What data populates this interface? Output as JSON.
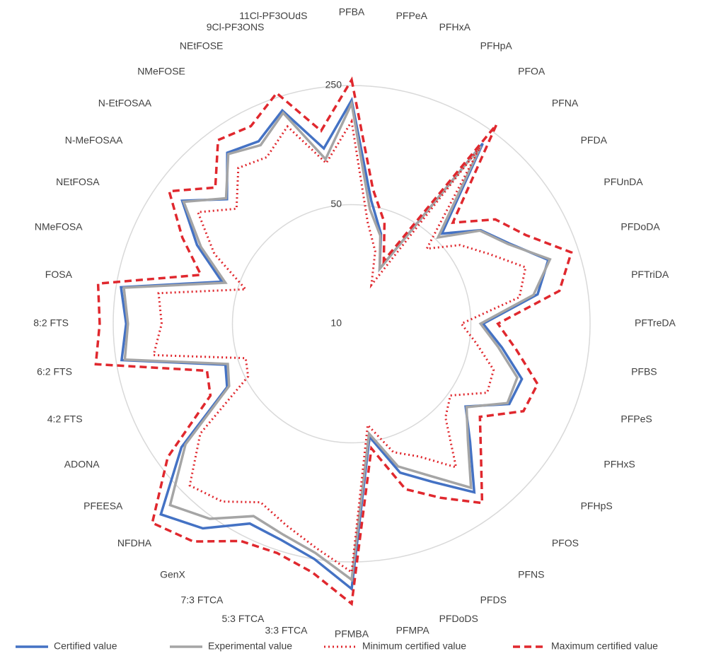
{
  "chart_data": {
    "type": "radar",
    "log_scale": true,
    "categories": [
      "PFBA",
      "PFPeA",
      "PFHxA",
      "PFHpA",
      "PFOA",
      "PFNA",
      "PFDA",
      "PFUnDA",
      "PFDoDA",
      "PFTriDA",
      "PFTreDA",
      "PFBS",
      "PFPeS",
      "PFHxS",
      "PFHpS",
      "PFOS",
      "PFNS",
      "PFDS",
      "PFDoDS",
      "PFMPA",
      "PFMBA",
      "3:3 FTCA",
      "5:3 FTCA",
      "7:3 FTCA",
      "GenX",
      "NFDHA",
      "PFEESA",
      "ADONA",
      "4:2 FTS",
      "6:2 FTS",
      "8:2 FTS",
      "FOSA",
      "NMeFOSA",
      "NEtFOSA",
      "N-MeFOSAA",
      "N-EtFOSAA",
      "NMeFOSE",
      "NEtFOSE",
      "9Cl-PF3ONS",
      "11Cl-PF3OUdS"
    ],
    "ylim": [
      10,
      250
    ],
    "yticks": [
      10,
      50,
      250
    ],
    "grid": true,
    "legend": "bottom",
    "series": [
      {
        "name": "Certified value",
        "color": "#4472c4",
        "dash": "solid",
        "values": [
          205,
          54,
          36,
          23,
          203,
          56,
          86,
          109,
          163,
          127,
          59,
          78,
          112,
          109,
          67,
          96,
          167,
          110,
          83,
          47,
          360,
          250,
          216,
          207,
          305,
          382,
          171,
          66,
          60,
          232,
          210,
          234,
          63,
          104,
          169,
          108,
          174,
          159,
          207,
          110
        ]
      },
      {
        "name": "Experimental value",
        "color": "#a5a5a5",
        "dash": "solid",
        "values": [
          196,
          48,
          35,
          23,
          194,
          52,
          85,
          107,
          167,
          120,
          57,
          74,
          105,
          106,
          68,
          92,
          155,
          100,
          76,
          45,
          318,
          230,
          200,
          185,
          260,
          320,
          160,
          64,
          58,
          222,
          205,
          225,
          60,
          98,
          165,
          110,
          170,
          150,
          200,
          95
        ]
      },
      {
        "name": "Minimum certified value",
        "color": "#e0282e",
        "dash": "dotted",
        "values": [
          154,
          40,
          28,
          18,
          190,
          42,
          61,
          80,
          118,
          99,
          44,
          55,
          75,
          78,
          52,
          60,
          110,
          75,
          62,
          40,
          287,
          215,
          175,
          150,
          195,
          220,
          125,
          48,
          45,
          150,
          130,
          140,
          45,
          80,
          130,
          90,
          135,
          125,
          165,
          90
        ]
      },
      {
        "name": "Maximum certified value",
        "color": "#e0282e",
        "dash": "dashed",
        "values": [
          270,
          63,
          42,
          26,
          278,
          69,
          110,
          140,
          226,
          171,
          72,
          95,
          140,
          135,
          85,
          118,
          200,
          140,
          105,
          55,
          440,
          300,
          260,
          270,
          380,
          450,
          215,
          85,
          78,
          330,
          300,
          320,
          85,
          130,
          210,
          135,
          215,
          200,
          265,
          140
        ]
      }
    ]
  }
}
